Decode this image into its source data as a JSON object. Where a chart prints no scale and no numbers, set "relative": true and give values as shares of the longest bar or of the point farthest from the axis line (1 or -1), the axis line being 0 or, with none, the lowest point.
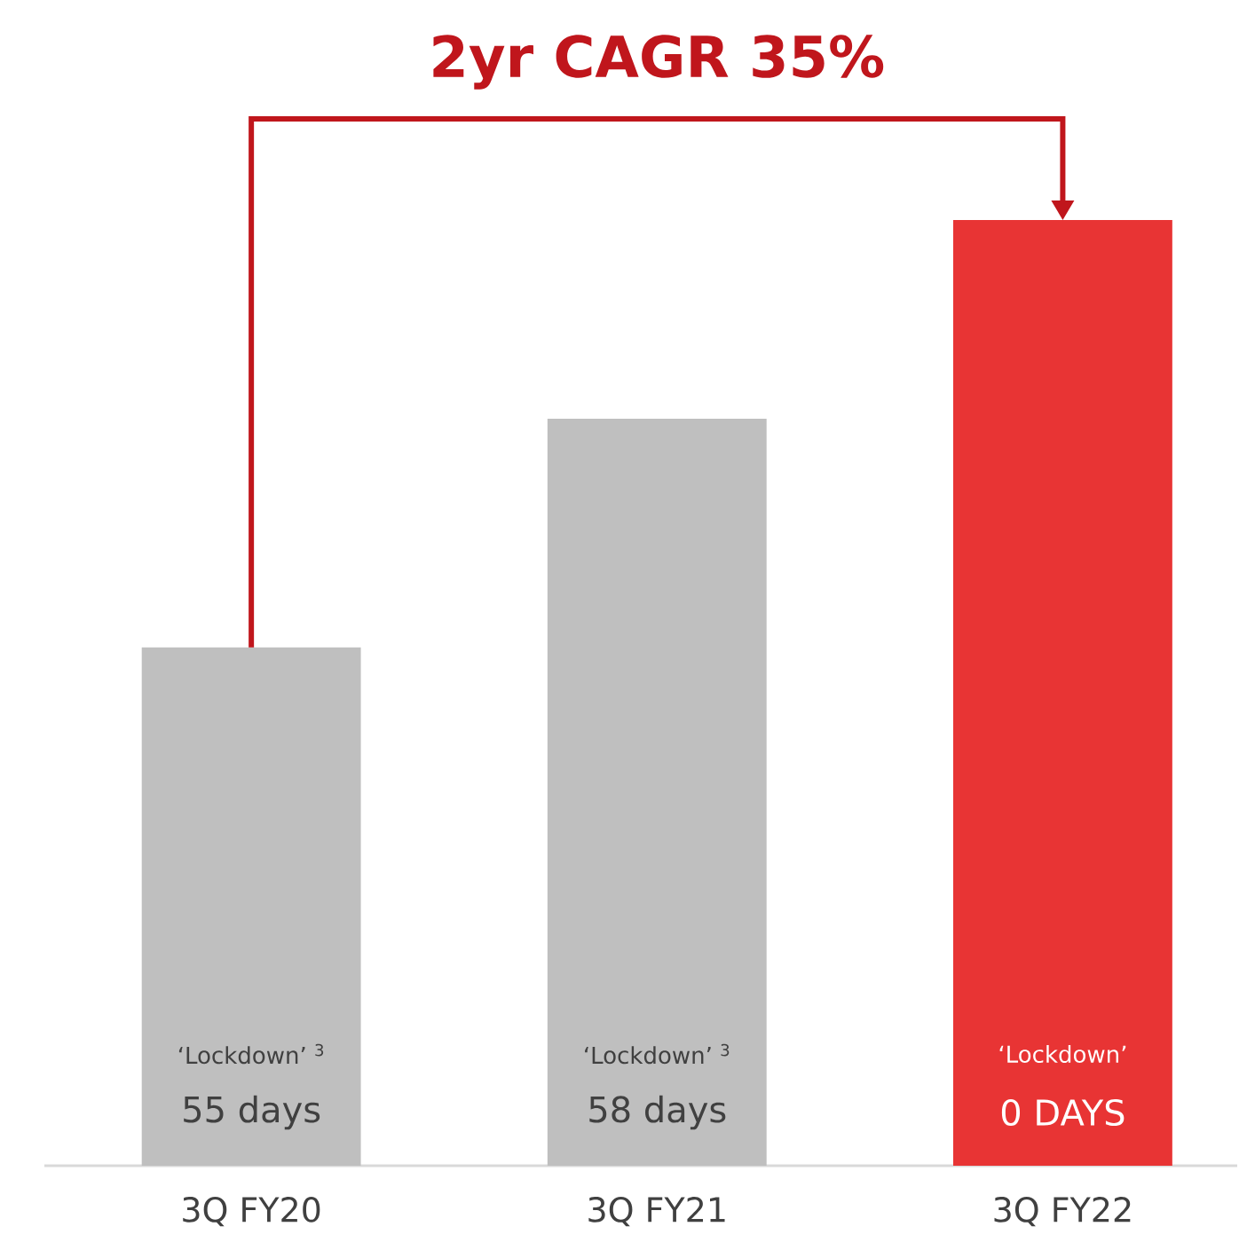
{
  "chart_data": {
    "type": "bar",
    "title": "2yr CAGR 35%",
    "relative": true,
    "categories": [
      "3Q FY20",
      "3Q FY21",
      "3Q FY22"
    ],
    "values": [
      0.548,
      0.79,
      1
    ],
    "colors": [
      "#bfbfbf",
      "#bfbfbf",
      "#e83434"
    ],
    "annotations": [
      "‘Lockdown’ $^{3}$",
      "55 days",
      "‘Lockdown’ $^{3}$",
      "58 days",
      "‘Lockdown’",
      "0 DAYS"
    ]
  }
}
